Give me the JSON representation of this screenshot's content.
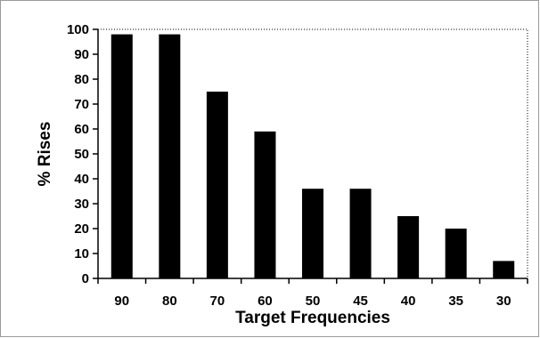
{
  "chart_data": {
    "type": "bar",
    "categories": [
      "90",
      "80",
      "70",
      "60",
      "50",
      "45",
      "40",
      "35",
      "30"
    ],
    "values": [
      98,
      98,
      75,
      59,
      36,
      36,
      25,
      20,
      7
    ],
    "xlabel": "Target Frequencies",
    "ylabel": "% Rises",
    "ylim": [
      0,
      100
    ],
    "yticks": [
      0,
      10,
      20,
      30,
      40,
      50,
      60,
      70,
      80,
      90,
      100
    ],
    "grid": false,
    "legend": "none",
    "bar_color": "#000000",
    "border_style": "dotted"
  }
}
